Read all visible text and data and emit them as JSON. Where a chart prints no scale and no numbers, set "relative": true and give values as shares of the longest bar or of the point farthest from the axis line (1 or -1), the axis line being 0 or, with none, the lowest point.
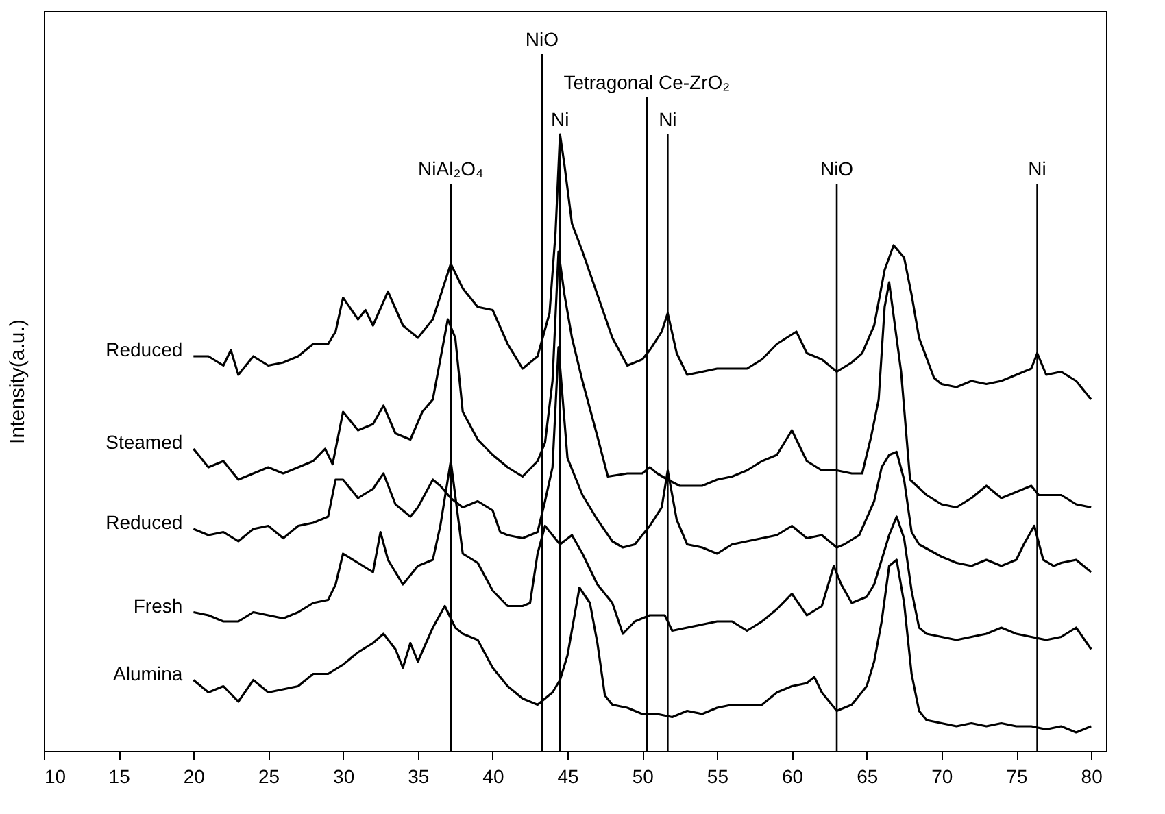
{
  "chart_data": {
    "type": "line",
    "relative": true,
    "ylabel": "Intensity(a.u.)",
    "xlim": [
      10,
      81
    ],
    "xticks": [
      10,
      15,
      20,
      25,
      30,
      35,
      40,
      45,
      50,
      55,
      60,
      65,
      70,
      75,
      80
    ],
    "series": [
      {
        "name": "Reduced",
        "color": "#000000",
        "x": [
          20,
          21,
          22,
          22.5,
          23,
          24,
          25,
          26,
          27,
          28,
          29,
          29.5,
          30,
          31,
          31.5,
          32,
          33,
          34,
          35,
          36,
          37.2,
          38,
          39,
          40,
          41,
          42,
          43,
          43.8,
          44.2,
          44.5,
          44.8,
          45.3,
          46,
          47,
          48,
          49,
          50,
          50.5,
          51.3,
          51.7,
          52.3,
          53,
          55,
          57,
          58,
          59,
          60.3,
          61,
          62,
          63,
          64,
          64.7,
          65.5,
          66.2,
          66.8,
          67.5,
          68,
          68.5,
          69.5,
          70,
          71,
          72,
          73,
          74,
          75,
          76,
          76.4,
          77,
          78,
          79,
          80
        ],
        "values": [
          0.64,
          0.64,
          0.625,
          0.65,
          0.61,
          0.64,
          0.625,
          0.63,
          0.64,
          0.66,
          0.66,
          0.68,
          0.735,
          0.7,
          0.715,
          0.69,
          0.745,
          0.69,
          0.67,
          0.7,
          0.79,
          0.75,
          0.72,
          0.715,
          0.66,
          0.62,
          0.64,
          0.71,
          0.84,
          1.0,
          0.95,
          0.855,
          0.81,
          0.74,
          0.67,
          0.625,
          0.635,
          0.65,
          0.68,
          0.71,
          0.645,
          0.61,
          0.62,
          0.62,
          0.635,
          0.66,
          0.68,
          0.645,
          0.635,
          0.615,
          0.63,
          0.645,
          0.69,
          0.78,
          0.82,
          0.8,
          0.74,
          0.67,
          0.605,
          0.595,
          0.59,
          0.6,
          0.595,
          0.6,
          0.61,
          0.62,
          0.645,
          0.61,
          0.615,
          0.6,
          0.57
        ]
      },
      {
        "name": "Steamed",
        "color": "#000000",
        "x": [
          20,
          21,
          22,
          23,
          24,
          25,
          26,
          27,
          28,
          28.8,
          29.3,
          30,
          31,
          32,
          32.7,
          33.5,
          34.5,
          35.3,
          36,
          36.5,
          37,
          37.5,
          38,
          39,
          40,
          41,
          42,
          43,
          43.5,
          44,
          44.4,
          44.8,
          45.3,
          46,
          47,
          47.7,
          49,
          50,
          50.5,
          51,
          51.7,
          52.5,
          54,
          55,
          56,
          57,
          58,
          59,
          60,
          60.5,
          61,
          62,
          63,
          64,
          64.7,
          65.3,
          65.8,
          66.2,
          66.5,
          67.3,
          67.9,
          69,
          70,
          71,
          72,
          73,
          74,
          75,
          76,
          76.5,
          77,
          78,
          79,
          80
        ],
        "values": [
          0.49,
          0.46,
          0.47,
          0.44,
          0.45,
          0.46,
          0.45,
          0.46,
          0.47,
          0.49,
          0.465,
          0.55,
          0.52,
          0.53,
          0.56,
          0.515,
          0.505,
          0.55,
          0.57,
          0.635,
          0.7,
          0.67,
          0.55,
          0.505,
          0.48,
          0.46,
          0.445,
          0.47,
          0.5,
          0.6,
          0.81,
          0.74,
          0.67,
          0.6,
          0.51,
          0.445,
          0.45,
          0.45,
          0.46,
          0.45,
          0.44,
          0.43,
          0.43,
          0.44,
          0.445,
          0.455,
          0.47,
          0.48,
          0.52,
          0.495,
          0.47,
          0.455,
          0.455,
          0.45,
          0.45,
          0.51,
          0.57,
          0.72,
          0.76,
          0.615,
          0.44,
          0.415,
          0.4,
          0.395,
          0.41,
          0.43,
          0.41,
          0.42,
          0.43,
          0.415,
          0.415,
          0.415,
          0.4,
          0.395
        ]
      },
      {
        "name": "Reduced",
        "color": "#000000",
        "x": [
          20,
          21,
          22,
          23,
          24,
          25,
          26,
          27,
          28,
          29,
          29.5,
          30,
          31,
          32,
          32.7,
          33.5,
          34.5,
          35,
          36,
          36.5,
          37.2,
          38,
          39,
          40,
          40.5,
          41,
          42,
          43,
          43.5,
          44,
          44.4,
          45,
          46,
          47,
          48,
          48.7,
          49.5,
          50.5,
          51.3,
          51.7,
          52.3,
          53,
          54,
          55,
          56,
          57,
          58,
          59,
          60,
          61,
          62,
          63,
          63.5,
          64.5,
          65.5,
          66,
          66.5,
          67,
          67.5,
          68,
          68.5,
          70,
          71,
          72,
          73,
          74,
          75,
          75.5,
          76.2,
          76.8,
          77.5,
          78,
          79,
          80
        ],
        "values": [
          0.36,
          0.35,
          0.355,
          0.34,
          0.36,
          0.365,
          0.345,
          0.365,
          0.37,
          0.38,
          0.44,
          0.44,
          0.41,
          0.425,
          0.45,
          0.4,
          0.38,
          0.395,
          0.44,
          0.43,
          0.41,
          0.395,
          0.405,
          0.39,
          0.355,
          0.35,
          0.345,
          0.355,
          0.405,
          0.46,
          0.655,
          0.475,
          0.415,
          0.375,
          0.34,
          0.33,
          0.335,
          0.365,
          0.395,
          0.455,
          0.375,
          0.335,
          0.33,
          0.32,
          0.335,
          0.34,
          0.345,
          0.35,
          0.365,
          0.345,
          0.35,
          0.33,
          0.335,
          0.35,
          0.405,
          0.46,
          0.48,
          0.485,
          0.44,
          0.355,
          0.335,
          0.315,
          0.305,
          0.3,
          0.31,
          0.3,
          0.31,
          0.335,
          0.365,
          0.31,
          0.3,
          0.305,
          0.31,
          0.29
        ]
      },
      {
        "name": "Fresh",
        "color": "#000000",
        "x": [
          20,
          21,
          22,
          23,
          24,
          25,
          26,
          27,
          28,
          29,
          29.5,
          30,
          31,
          32,
          32.5,
          33,
          34,
          35,
          36,
          36.5,
          37.2,
          38,
          39,
          40,
          41,
          42,
          42.5,
          43,
          43.5,
          44,
          44.5,
          45.3,
          46,
          47,
          48,
          48.7,
          49.5,
          50.5,
          51.5,
          52,
          53,
          54,
          55,
          56,
          57,
          58,
          59,
          60,
          61,
          62,
          62.8,
          63.3,
          64,
          65,
          65.5,
          66.5,
          67,
          67.5,
          68,
          68.5,
          69,
          70,
          71,
          72,
          73,
          74,
          75,
          76,
          77,
          78,
          79,
          80
        ],
        "values": [
          0.225,
          0.22,
          0.21,
          0.21,
          0.225,
          0.22,
          0.215,
          0.225,
          0.24,
          0.245,
          0.27,
          0.32,
          0.305,
          0.29,
          0.355,
          0.31,
          0.27,
          0.3,
          0.31,
          0.365,
          0.47,
          0.32,
          0.305,
          0.26,
          0.235,
          0.235,
          0.24,
          0.32,
          0.365,
          0.35,
          0.335,
          0.35,
          0.32,
          0.27,
          0.24,
          0.19,
          0.21,
          0.22,
          0.22,
          0.195,
          0.2,
          0.205,
          0.21,
          0.21,
          0.195,
          0.21,
          0.23,
          0.255,
          0.22,
          0.235,
          0.3,
          0.27,
          0.24,
          0.25,
          0.27,
          0.35,
          0.38,
          0.345,
          0.26,
          0.2,
          0.19,
          0.185,
          0.18,
          0.185,
          0.19,
          0.2,
          0.19,
          0.185,
          0.18,
          0.185,
          0.2,
          0.165
        ]
      },
      {
        "name": "Alumina",
        "color": "#000000",
        "x": [
          20,
          21,
          22,
          23,
          24,
          25,
          26,
          27,
          28,
          29,
          30,
          31,
          32,
          32.7,
          33.5,
          34,
          34.5,
          35,
          36,
          36.8,
          37.5,
          38,
          39,
          40,
          41,
          42,
          43,
          44,
          44.5,
          45,
          45.8,
          46.5,
          47,
          47.5,
          48,
          49,
          50,
          51,
          52,
          53,
          54,
          55,
          56,
          57,
          58,
          59,
          60,
          61,
          61.5,
          62,
          63,
          64,
          65,
          65.5,
          66,
          66.5,
          67,
          67.5,
          68,
          68.5,
          69,
          70,
          71,
          72,
          73,
          74,
          75,
          76,
          77,
          78,
          79,
          80
        ],
        "values": [
          0.115,
          0.095,
          0.105,
          0.08,
          0.115,
          0.095,
          0.1,
          0.105,
          0.125,
          0.125,
          0.14,
          0.16,
          0.175,
          0.19,
          0.165,
          0.135,
          0.175,
          0.145,
          0.2,
          0.235,
          0.2,
          0.19,
          0.18,
          0.135,
          0.105,
          0.085,
          0.075,
          0.095,
          0.115,
          0.155,
          0.265,
          0.24,
          0.175,
          0.09,
          0.075,
          0.07,
          0.06,
          0.06,
          0.055,
          0.065,
          0.06,
          0.07,
          0.075,
          0.075,
          0.075,
          0.095,
          0.105,
          0.11,
          0.12,
          0.095,
          0.065,
          0.075,
          0.105,
          0.145,
          0.21,
          0.3,
          0.31,
          0.24,
          0.125,
          0.065,
          0.05,
          0.045,
          0.04,
          0.045,
          0.04,
          0.045,
          0.04,
          0.04,
          0.035,
          0.04,
          0.03,
          0.04
        ]
      }
    ],
    "ref_lines": [
      {
        "axis": "x",
        "value": 37.2,
        "label": "NiAl₂O₄"
      },
      {
        "axis": "x",
        "value": 43.3,
        "label": "NiO"
      },
      {
        "axis": "x",
        "value": 44.5,
        "label": "Ni"
      },
      {
        "axis": "x",
        "value": 50.3,
        "label": "Tetragonal Ce-ZrO₂"
      },
      {
        "axis": "x",
        "value": 51.7,
        "label": "Ni"
      },
      {
        "axis": "x",
        "value": 63.0,
        "label": "NiO"
      },
      {
        "axis": "x",
        "value": 76.4,
        "label": "Ni"
      }
    ]
  }
}
